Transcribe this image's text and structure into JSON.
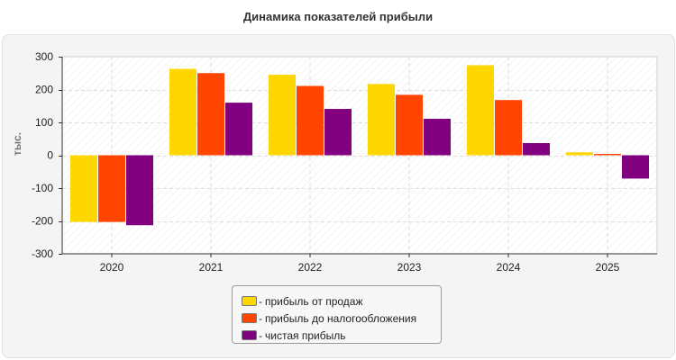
{
  "title": "Динамика показателей прибыли",
  "chart_data": {
    "type": "bar",
    "title": "Динамика показателей прибыли",
    "xlabel": "",
    "ylabel": "тыс.",
    "categories": [
      "2020",
      "2021",
      "2022",
      "2023",
      "2024",
      "2025"
    ],
    "ylim": [
      -300,
      300
    ],
    "yticks": [
      300,
      200,
      100,
      0,
      -100,
      -200,
      -300
    ],
    "grid": true,
    "legend_position": "bottom",
    "series": [
      {
        "name": "прибыль от продаж",
        "color": "#ffd700",
        "values": [
          -203,
          263,
          245,
          217,
          274,
          9
        ]
      },
      {
        "name": "прибыль до налогообложения",
        "color": "#ff4500",
        "values": [
          -203,
          250,
          211,
          184,
          168,
          4
        ]
      },
      {
        "name": "чистая прибыль",
        "color": "#800080",
        "values": [
          -213,
          160,
          141,
          111,
          37,
          -71
        ]
      }
    ]
  },
  "legend": {
    "prefix": "-"
  }
}
